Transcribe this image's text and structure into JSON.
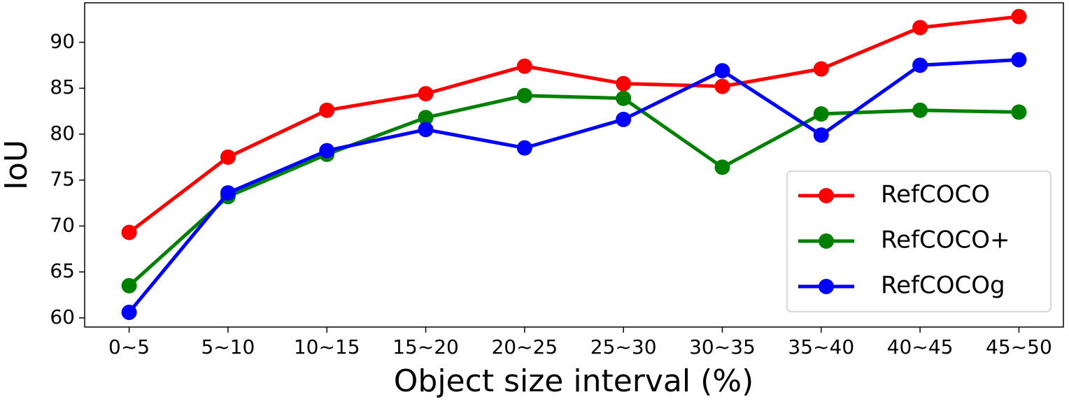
{
  "chart_data": {
    "type": "line",
    "x_label": "Object size interval (%)",
    "y_label": "IoU",
    "categories": [
      "0~5",
      "5~10",
      "10~15",
      "15~20",
      "20~25",
      "25~30",
      "30~35",
      "35~40",
      "40~45",
      "45~50"
    ],
    "series": [
      {
        "name": "RefCOCO",
        "color": "#ff0000",
        "values": [
          69.3,
          77.5,
          82.6,
          84.4,
          87.4,
          85.5,
          85.2,
          87.1,
          91.6,
          92.8
        ]
      },
      {
        "name": "RefCOCO+",
        "color": "#008000",
        "values": [
          63.5,
          73.2,
          77.8,
          81.8,
          84.2,
          83.9,
          76.4,
          82.2,
          82.6,
          82.4
        ]
      },
      {
        "name": "RefCOCOg",
        "color": "#0000ff",
        "values": [
          60.6,
          73.6,
          78.2,
          80.5,
          78.5,
          81.6,
          86.9,
          79.9,
          87.5,
          88.1
        ]
      }
    ],
    "ylim": [
      59.0,
      94.3
    ],
    "yticks": [
      60,
      65,
      70,
      75,
      80,
      85,
      90
    ],
    "legend": "lower right",
    "grid": false
  }
}
